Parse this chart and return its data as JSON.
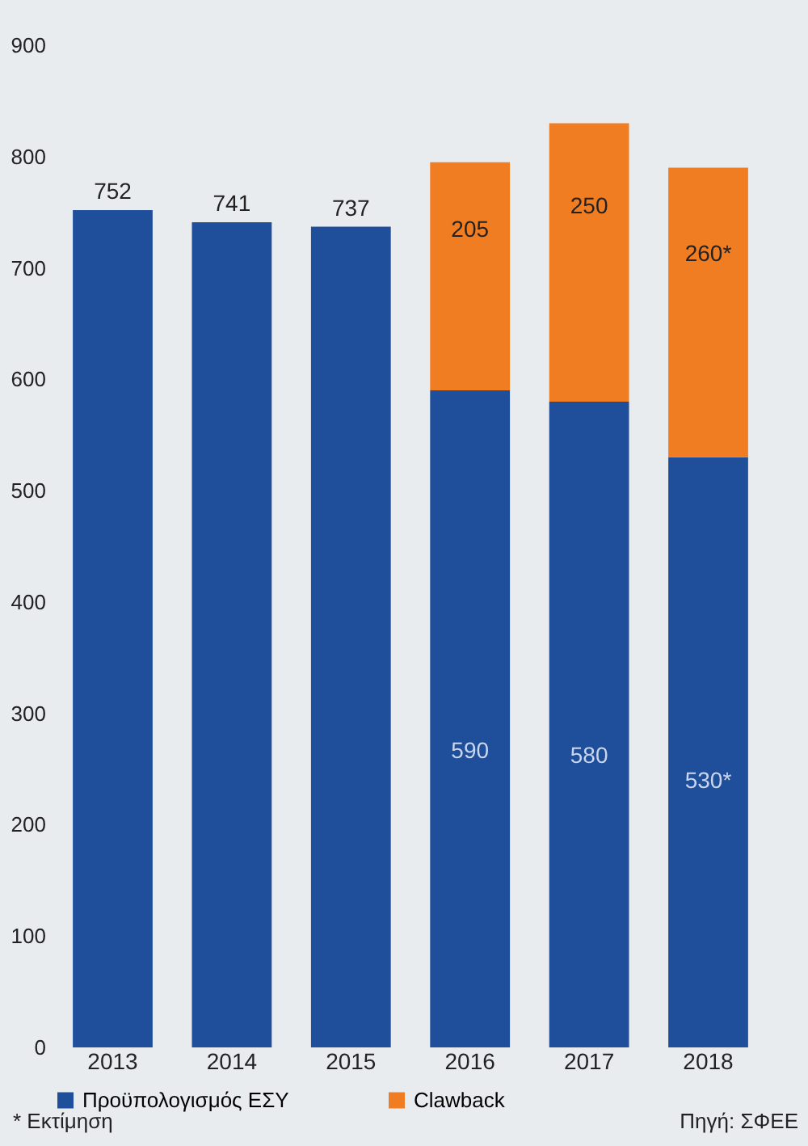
{
  "chart_data": {
    "type": "bar",
    "stacked": true,
    "categories": [
      "2013",
      "2014",
      "2015",
      "2016",
      "2017",
      "2018"
    ],
    "series": [
      {
        "name": "Προϋπολογισμός ΕΣΥ",
        "color": "#1f4f9a",
        "values": [
          752,
          741,
          737,
          590,
          580,
          530
        ],
        "value_labels": [
          "752",
          "741",
          "737",
          "590",
          "580",
          "530*"
        ]
      },
      {
        "name": "Clawback",
        "color": "#f07d22",
        "values": [
          null,
          null,
          null,
          205,
          250,
          260
        ],
        "value_labels": [
          null,
          null,
          null,
          "205",
          "250",
          "260*"
        ]
      }
    ],
    "ylim": [
      0,
      900
    ],
    "yticks": [
      0,
      100,
      200,
      300,
      400,
      500,
      600,
      700,
      800,
      900
    ],
    "grid": false,
    "legend": "bottom",
    "annotations": [
      "* Εκτίμηση",
      "Πηγή: ΣΦΕΕ"
    ]
  }
}
